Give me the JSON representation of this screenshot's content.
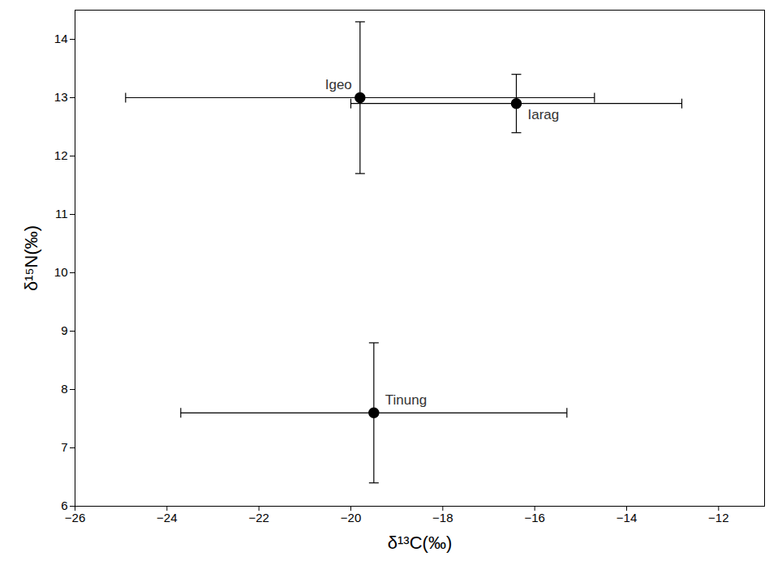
{
  "chart_data": {
    "type": "scatter",
    "x_label": "δ¹³C(‰)",
    "y_label": "δ¹⁵N(‰)",
    "labels": [
      "Igeo",
      "Iarag",
      "Tinung"
    ],
    "x": [
      -19.8,
      -16.4,
      -19.5
    ],
    "values": [
      13.0,
      12.9,
      7.6
    ],
    "x_err": [
      5.1,
      3.6,
      4.2
    ],
    "y_err": [
      1.3,
      0.5,
      1.2
    ],
    "color": "#000000",
    "marker": "circle",
    "grid": false,
    "xlim": [
      -26,
      -11
    ],
    "xticks": [
      -26,
      -24,
      -22,
      -20,
      -18,
      -16,
      -14,
      -12
    ],
    "ylim": [
      6,
      14.5
    ],
    "yticks": [
      6,
      7,
      8,
      9,
      10,
      11,
      12,
      13,
      14
    ]
  }
}
